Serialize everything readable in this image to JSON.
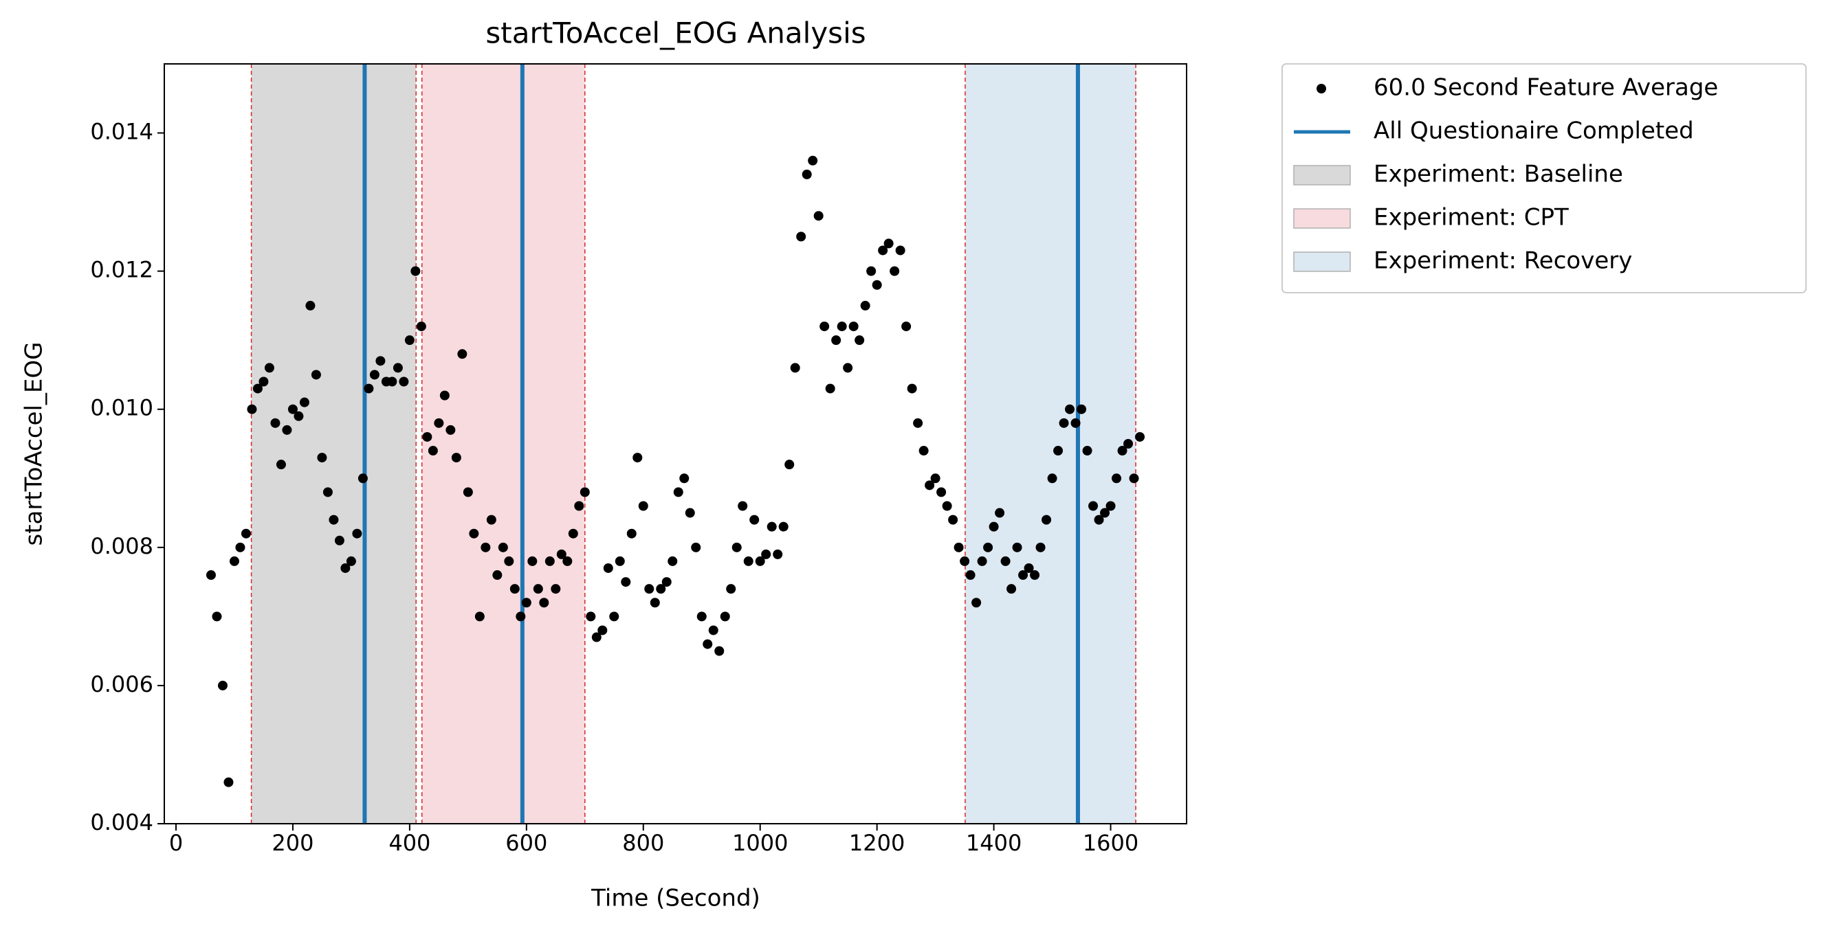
{
  "chart_data": {
    "type": "scatter",
    "title": "startToAccel_EOG Analysis",
    "xlabel": "Time (Second)",
    "ylabel": "startToAccel_EOG",
    "xlim": [
      -20,
      1730
    ],
    "ylim": [
      0.004,
      0.015
    ],
    "xticks": [
      0,
      200,
      400,
      600,
      800,
      1000,
      1200,
      1400,
      1600
    ],
    "yticks": [
      0.004,
      0.006,
      0.008,
      {
        "value": 0.01,
        "label": "0.010"
      },
      0.012,
      0.014
    ],
    "legend_location": "outside upper right",
    "series": [
      {
        "name": "60.0 Second Feature Average",
        "color": "#000000",
        "x": [
          60,
          70,
          80,
          90,
          100,
          110,
          120,
          130,
          140,
          150,
          160,
          170,
          180,
          190,
          200,
          210,
          220,
          230,
          240,
          250,
          260,
          270,
          280,
          290,
          300,
          310,
          320,
          330,
          340,
          350,
          360,
          370,
          380,
          390,
          400,
          410,
          420,
          430,
          440,
          450,
          460,
          470,
          480,
          490,
          500,
          510,
          520,
          530,
          540,
          550,
          560,
          570,
          580,
          590,
          600,
          610,
          620,
          630,
          640,
          650,
          660,
          670,
          680,
          690,
          700,
          710,
          720,
          730,
          740,
          750,
          760,
          770,
          780,
          790,
          800,
          810,
          820,
          830,
          840,
          850,
          860,
          870,
          880,
          890,
          900,
          910,
          920,
          930,
          940,
          950,
          960,
          970,
          980,
          990,
          1000,
          1010,
          1020,
          1030,
          1040,
          1050,
          1060,
          1070,
          1080,
          1090,
          1100,
          1110,
          1120,
          1130,
          1140,
          1150,
          1160,
          1170,
          1180,
          1190,
          1200,
          1210,
          1220,
          1230,
          1240,
          1250,
          1260,
          1270,
          1280,
          1290,
          1300,
          1310,
          1320,
          1330,
          1340,
          1350,
          1360,
          1370,
          1380,
          1390,
          1400,
          1410,
          1420,
          1430,
          1440,
          1450,
          1460,
          1470,
          1480,
          1490,
          1500,
          1510,
          1520,
          1530,
          1540,
          1550,
          1560,
          1570,
          1580,
          1590,
          1600,
          1610,
          1620,
          1630,
          1640,
          1650
        ],
        "values": [
          0.0076,
          0.007,
          0.006,
          0.0046,
          0.0078,
          0.008,
          0.0082,
          0.01,
          0.0103,
          0.0104,
          0.0106,
          0.0098,
          0.0092,
          0.0097,
          0.01,
          0.0099,
          0.0101,
          0.0115,
          0.0105,
          0.0093,
          0.0088,
          0.0084,
          0.0081,
          0.0077,
          0.0078,
          0.0082,
          0.009,
          0.0103,
          0.0105,
          0.0107,
          0.0104,
          0.0104,
          0.0106,
          0.0104,
          0.011,
          0.012,
          0.0112,
          0.0096,
          0.0094,
          0.0098,
          0.0102,
          0.0097,
          0.0093,
          0.0108,
          0.0088,
          0.0082,
          0.007,
          0.008,
          0.0084,
          0.0076,
          0.008,
          0.0078,
          0.0074,
          0.007,
          0.0072,
          0.0078,
          0.0074,
          0.0072,
          0.0078,
          0.0074,
          0.0079,
          0.0078,
          0.0082,
          0.0086,
          0.0088,
          0.007,
          0.0067,
          0.0068,
          0.0077,
          0.007,
          0.0078,
          0.0075,
          0.0082,
          0.0093,
          0.0086,
          0.0074,
          0.0072,
          0.0074,
          0.0075,
          0.0078,
          0.0088,
          0.009,
          0.0085,
          0.008,
          0.007,
          0.0066,
          0.0068,
          0.0065,
          0.007,
          0.0074,
          0.008,
          0.0086,
          0.0078,
          0.0084,
          0.0078,
          0.0079,
          0.0083,
          0.0079,
          0.0083,
          0.0092,
          0.0106,
          0.0125,
          0.0134,
          0.0136,
          0.0128,
          0.0112,
          0.0103,
          0.011,
          0.0112,
          0.0106,
          0.0112,
          0.011,
          0.0115,
          0.012,
          0.0118,
          0.0123,
          0.0124,
          0.012,
          0.0123,
          0.0112,
          0.0103,
          0.0098,
          0.0094,
          0.0089,
          0.009,
          0.0088,
          0.0086,
          0.0084,
          0.008,
          0.0078,
          0.0076,
          0.0072,
          0.0078,
          0.008,
          0.0083,
          0.0085,
          0.0078,
          0.0074,
          0.008,
          0.0076,
          0.0077,
          0.0076,
          0.008,
          0.0084,
          0.009,
          0.0094,
          0.0098,
          0.01,
          0.0098,
          0.01,
          0.0094,
          0.0086,
          0.0084,
          0.0085,
          0.0086,
          0.009,
          0.0094,
          0.0095,
          0.009,
          0.0096
        ]
      }
    ],
    "vlines": {
      "name": "All Questionaire Completed",
      "color": "#1f77b4",
      "x": [
        323,
        593,
        1544
      ]
    },
    "span_edge_color": "#d62728",
    "spans": [
      {
        "name": "Experiment: Baseline",
        "color": "#d9d9d9",
        "start": 129,
        "end": 411
      },
      {
        "name": "Experiment: CPT",
        "color": "#f8dbdf",
        "start": 421,
        "end": 700
      },
      {
        "name": "Experiment: Recovery",
        "color": "#dce8f2",
        "start": 1351,
        "end": 1643
      }
    ]
  }
}
